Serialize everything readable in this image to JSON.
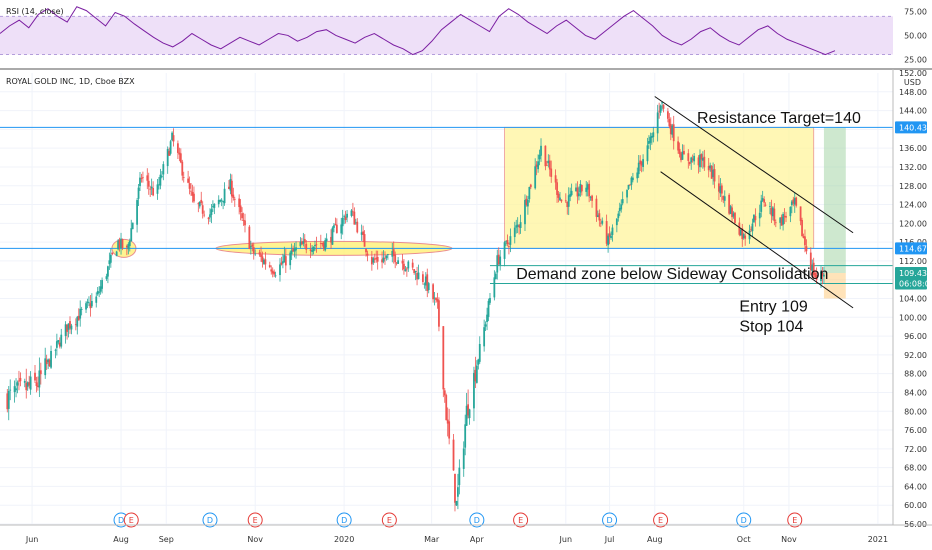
{
  "chart_data": {
    "type": "candlestick",
    "title": "ROYAL GOLD INC, 1D, Cboe BZX",
    "y_unit": "USD",
    "ylim": [
      56,
      152
    ],
    "y_ticks": [
      56,
      60,
      64,
      68,
      72,
      76,
      80,
      84,
      88,
      92,
      96,
      100,
      104,
      108,
      112,
      116,
      120,
      124,
      128,
      132,
      136,
      140,
      144,
      148
    ],
    "top_tick_label": "152.00",
    "x_ticks": [
      "Jun",
      "Aug",
      "Sep",
      "Nov",
      "2020",
      "Mar",
      "Apr",
      "Jun",
      "Jul",
      "Aug",
      "Oct",
      "Nov",
      "2021"
    ],
    "price_path": [
      {
        "date": "2019-05-15",
        "close": 83
      },
      {
        "date": "2019-06-05",
        "close": 86
      },
      {
        "date": "2019-06-25",
        "close": 98
      },
      {
        "date": "2019-07-15",
        "close": 104
      },
      {
        "date": "2019-07-30",
        "close": 116
      },
      {
        "date": "2019-08-05",
        "close": 114
      },
      {
        "date": "2019-08-15",
        "close": 130
      },
      {
        "date": "2019-08-25",
        "close": 126
      },
      {
        "date": "2019-09-05",
        "close": 138
      },
      {
        "date": "2019-09-20",
        "close": 124
      },
      {
        "date": "2019-10-01",
        "close": 122
      },
      {
        "date": "2019-10-15",
        "close": 128
      },
      {
        "date": "2019-10-30",
        "close": 114
      },
      {
        "date": "2019-11-15",
        "close": 110
      },
      {
        "date": "2019-12-01",
        "close": 115
      },
      {
        "date": "2019-12-20",
        "close": 116
      },
      {
        "date": "2020-01-05",
        "close": 123
      },
      {
        "date": "2020-01-20",
        "close": 112
      },
      {
        "date": "2020-02-05",
        "close": 113
      },
      {
        "date": "2020-02-25",
        "close": 108
      },
      {
        "date": "2020-03-05",
        "close": 102
      },
      {
        "date": "2020-03-12",
        "close": 76
      },
      {
        "date": "2020-03-18",
        "close": 60
      },
      {
        "date": "2020-03-25",
        "close": 80
      },
      {
        "date": "2020-04-05",
        "close": 96
      },
      {
        "date": "2020-04-15",
        "close": 112
      },
      {
        "date": "2020-04-30",
        "close": 120
      },
      {
        "date": "2020-05-15",
        "close": 136
      },
      {
        "date": "2020-05-30",
        "close": 124
      },
      {
        "date": "2020-06-15",
        "close": 128
      },
      {
        "date": "2020-06-30",
        "close": 116
      },
      {
        "date": "2020-07-15",
        "close": 128
      },
      {
        "date": "2020-07-30",
        "close": 138
      },
      {
        "date": "2020-08-05",
        "close": 146
      },
      {
        "date": "2020-08-20",
        "close": 134
      },
      {
        "date": "2020-09-05",
        "close": 133
      },
      {
        "date": "2020-09-20",
        "close": 124
      },
      {
        "date": "2020-10-01",
        "close": 117
      },
      {
        "date": "2020-10-15",
        "close": 125
      },
      {
        "date": "2020-10-25",
        "close": 120
      },
      {
        "date": "2020-11-05",
        "close": 124
      },
      {
        "date": "2020-11-15",
        "close": 112
      },
      {
        "date": "2020-11-20",
        "close": 108
      },
      {
        "date": "2020-11-25",
        "close": 109.43
      }
    ],
    "price_labels": [
      {
        "value": 140.43,
        "text": "140.43",
        "color": "#2196f3"
      },
      {
        "value": 114.67,
        "text": "114.67",
        "color": "#2196f3"
      },
      {
        "value": 109.43,
        "text": "109.43",
        "color": "#26a69a"
      },
      {
        "value": 107.2,
        "text": "06:08:05",
        "color": "#26a69a"
      }
    ],
    "horizontal_lines": [
      {
        "value": 140.43,
        "color": "#2196f3"
      },
      {
        "value": 114.67,
        "color": "#2196f3"
      },
      {
        "value": 111.0,
        "color": "#26a69a"
      },
      {
        "value": 107.2,
        "color": "#26a69a"
      }
    ],
    "annotations": {
      "resistance": "Resistance Target=140",
      "demand": "Demand zone below Sideway Consolidation",
      "entry": "Entry 109",
      "stop": "Stop 104"
    },
    "event_markers": [
      {
        "date": "2019-08-01",
        "label": "D",
        "kind": "dividend"
      },
      {
        "date": "2019-08-08",
        "label": "E",
        "kind": "earnings"
      },
      {
        "date": "2019-10-01",
        "label": "D",
        "kind": "dividend"
      },
      {
        "date": "2019-11-01",
        "label": "E",
        "kind": "earnings"
      },
      {
        "date": "2020-01-01",
        "label": "D",
        "kind": "dividend"
      },
      {
        "date": "2020-02-01",
        "label": "E",
        "kind": "earnings"
      },
      {
        "date": "2020-04-01",
        "label": "D",
        "kind": "dividend"
      },
      {
        "date": "2020-05-01",
        "label": "E",
        "kind": "earnings"
      },
      {
        "date": "2020-07-01",
        "label": "D",
        "kind": "dividend"
      },
      {
        "date": "2020-08-05",
        "label": "E",
        "kind": "earnings"
      },
      {
        "date": "2020-10-01",
        "label": "D",
        "kind": "dividend"
      },
      {
        "date": "2020-11-05",
        "label": "E",
        "kind": "earnings"
      }
    ],
    "rsi": {
      "label": "RSI (14, close)",
      "ylim": [
        18,
        85
      ],
      "levels": [
        70,
        30
      ],
      "ticks": [
        "75.00",
        "50.00",
        "25.00"
      ],
      "tick_values": [
        75,
        50,
        25
      ],
      "values": [
        52,
        60,
        66,
        58,
        72,
        78,
        70,
        64,
        80,
        76,
        68,
        60,
        74,
        70,
        62,
        55,
        48,
        42,
        38,
        44,
        52,
        46,
        40,
        36,
        42,
        48,
        44,
        40,
        46,
        52,
        50,
        44,
        48,
        54,
        56,
        50,
        46,
        42,
        48,
        52,
        46,
        40,
        36,
        30,
        34,
        44,
        56,
        64,
        72,
        66,
        60,
        54,
        70,
        78,
        72,
        64,
        58,
        52,
        60,
        66,
        58,
        50,
        46,
        54,
        62,
        70,
        76,
        68,
        60,
        50,
        44,
        40,
        46,
        54,
        58,
        50,
        44,
        40,
        48,
        56,
        60,
        52,
        46,
        42,
        38,
        34,
        30,
        34
      ]
    }
  }
}
